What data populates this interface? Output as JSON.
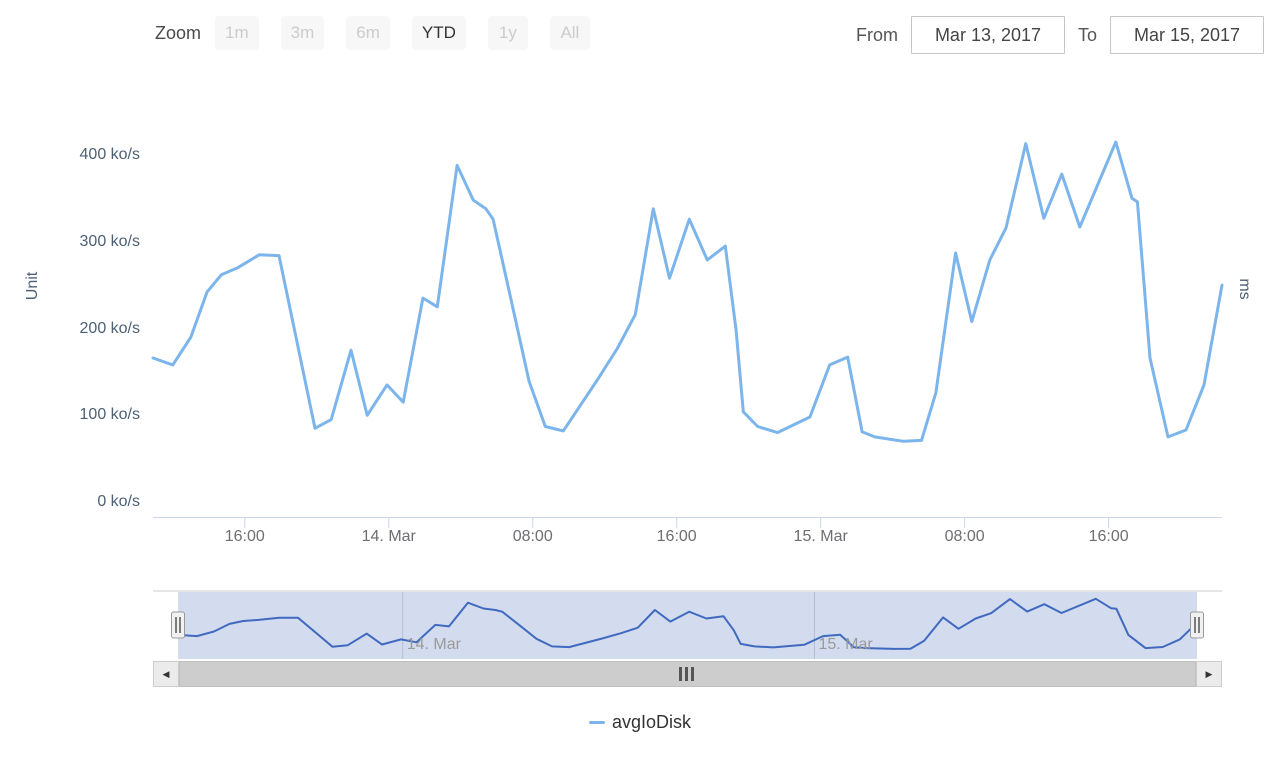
{
  "header": {
    "zoom_label": "Zoom",
    "zoom_buttons": [
      {
        "label": "1m",
        "enabled": false
      },
      {
        "label": "3m",
        "enabled": false
      },
      {
        "label": "6m",
        "enabled": false
      },
      {
        "label": "YTD",
        "enabled": true
      },
      {
        "label": "1y",
        "enabled": false
      },
      {
        "label": "All",
        "enabled": false
      }
    ],
    "from_label": "From",
    "from_value": "Mar 13, 2017",
    "to_label": "To",
    "to_value": "Mar 15, 2017"
  },
  "chart_data": {
    "type": "line",
    "title": "",
    "ylabel_left": "Unit",
    "ylabel_right": "ms",
    "x_unit": "hours since 2017-03-13 00:00",
    "xlim": [
      10.9,
      70.3
    ],
    "ylim": [
      0,
      433
    ],
    "grid": false,
    "legend_position": "bottom-center",
    "x_ticks": [
      {
        "t": 16,
        "label": "16:00"
      },
      {
        "t": 24,
        "label": "14. Mar"
      },
      {
        "t": 32,
        "label": "08:00"
      },
      {
        "t": 40,
        "label": "16:00"
      },
      {
        "t": 48,
        "label": "15. Mar"
      },
      {
        "t": 56,
        "label": "08:00"
      },
      {
        "t": 64,
        "label": "16:00"
      }
    ],
    "y_ticks": [
      {
        "v": 0,
        "label": "0 ko/s"
      },
      {
        "v": 100,
        "label": "100 ko/s"
      },
      {
        "v": 200,
        "label": "200 ko/s"
      },
      {
        "v": 300,
        "label": "300 ko/s"
      },
      {
        "v": 400,
        "label": "400 ko/s"
      }
    ],
    "series": [
      {
        "name": "avgIoDisk",
        "color": "#7cb5ec",
        "unit": "ko/s",
        "points": [
          [
            10.9,
            166
          ],
          [
            12,
            158
          ],
          [
            13,
            190
          ],
          [
            13.9,
            242
          ],
          [
            14.7,
            262
          ],
          [
            15.6,
            270
          ],
          [
            16.8,
            285
          ],
          [
            17.9,
            284
          ],
          [
            19.9,
            85
          ],
          [
            20.8,
            95
          ],
          [
            21.9,
            175
          ],
          [
            22.8,
            100
          ],
          [
            23.9,
            135
          ],
          [
            24.8,
            115
          ],
          [
            25.9,
            235
          ],
          [
            26.7,
            225
          ],
          [
            27.8,
            388
          ],
          [
            28.7,
            348
          ],
          [
            29.4,
            338
          ],
          [
            29.8,
            326
          ],
          [
            30.8,
            233
          ],
          [
            31.8,
            139
          ],
          [
            32.7,
            87
          ],
          [
            33.7,
            82
          ],
          [
            35.6,
            141
          ],
          [
            36.7,
            177
          ],
          [
            37.7,
            216
          ],
          [
            38.7,
            338
          ],
          [
            39.6,
            258
          ],
          [
            40.7,
            326
          ],
          [
            41.7,
            279
          ],
          [
            42.7,
            295
          ],
          [
            43.3,
            198
          ],
          [
            43.7,
            104
          ],
          [
            44.5,
            87
          ],
          [
            45.6,
            80
          ],
          [
            47.4,
            98
          ],
          [
            48.5,
            158
          ],
          [
            49.5,
            167
          ],
          [
            50.3,
            81
          ],
          [
            51,
            75
          ],
          [
            52.6,
            70
          ],
          [
            53.6,
            71
          ],
          [
            54.4,
            126
          ],
          [
            55.5,
            287
          ],
          [
            56.4,
            208
          ],
          [
            57.4,
            279
          ],
          [
            58.3,
            316
          ],
          [
            59.4,
            413
          ],
          [
            60.4,
            327
          ],
          [
            61.4,
            378
          ],
          [
            62.4,
            317
          ],
          [
            64.4,
            415
          ],
          [
            65.3,
            350
          ],
          [
            65.6,
            346
          ],
          [
            66.3,
            166
          ],
          [
            67.3,
            75
          ],
          [
            68.3,
            83
          ],
          [
            69.3,
            135
          ],
          [
            70.3,
            250
          ]
        ]
      }
    ]
  },
  "navigator": {
    "x_ticks": [
      {
        "t": 24,
        "label": "14. Mar"
      },
      {
        "t": 48,
        "label": "15. Mar"
      }
    ],
    "line_color": "#4069c0",
    "mask_color": "#d3dcee",
    "outline_color": "#cccccc",
    "gridline_color": "#b3bfd6"
  },
  "scrollbar": {
    "left_arrow_icon": "◀",
    "right_arrow_icon": "▶"
  },
  "legend": {
    "items": [
      {
        "label": "avgIoDisk",
        "color": "#7cb5ec"
      }
    ]
  },
  "colors": {
    "series_line": "#7cb5ec",
    "axis_line": "#ccd6eb",
    "x_label": "#6e6e73",
    "y_label": "#4d6176"
  }
}
